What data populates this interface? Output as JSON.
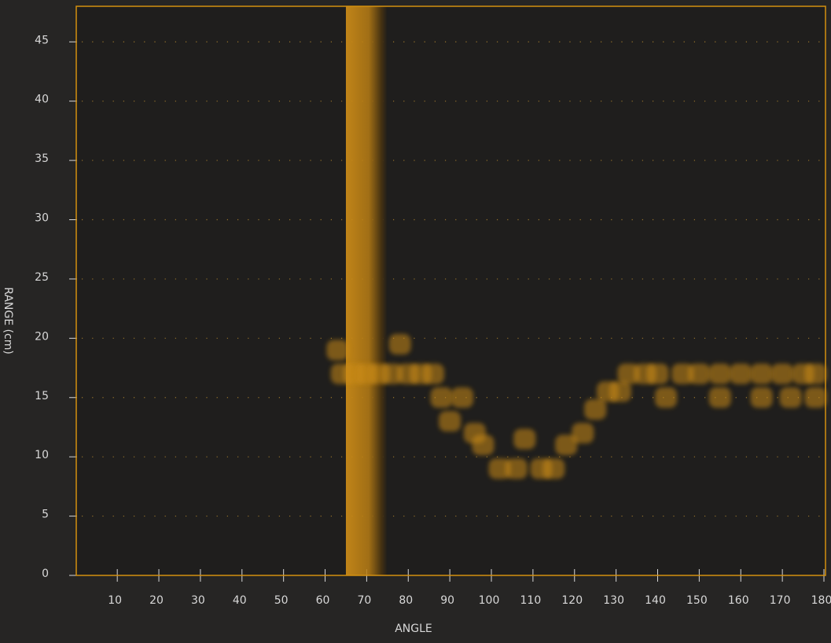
{
  "chart_data": {
    "type": "scatter",
    "x_label": "ANGLE",
    "y_label": "RANGE (cm)",
    "xlim": [
      0,
      180
    ],
    "ylim": [
      0,
      48
    ],
    "xticks": [
      10,
      20,
      30,
      40,
      50,
      60,
      70,
      80,
      90,
      100,
      110,
      120,
      130,
      140,
      150,
      160,
      170,
      180
    ],
    "yticks": [
      0,
      5,
      10,
      15,
      20,
      25,
      30,
      35,
      40,
      45
    ],
    "grid": true,
    "color": "#c98a18",
    "sweep": {
      "start": 65,
      "end": 75,
      "color": "#c98a18"
    },
    "x": [
      63,
      64,
      67,
      70,
      73,
      76,
      78,
      80,
      83,
      86,
      88,
      90,
      93,
      96,
      98,
      102,
      106,
      108,
      112,
      115,
      118,
      122,
      125,
      128,
      131,
      133,
      137,
      140,
      142,
      146,
      150,
      155,
      160,
      165,
      170,
      175,
      178,
      155,
      165,
      172,
      178
    ],
    "values": [
      19,
      17,
      17,
      17,
      17,
      17,
      19.5,
      17,
      17,
      17,
      15,
      13,
      15,
      12,
      11,
      9,
      9,
      11.5,
      9,
      9,
      11,
      12,
      14,
      15.5,
      15.5,
      17,
      17,
      17,
      15,
      17,
      17,
      17,
      17,
      17,
      17,
      17,
      17,
      15,
      15,
      15,
      15
    ]
  }
}
